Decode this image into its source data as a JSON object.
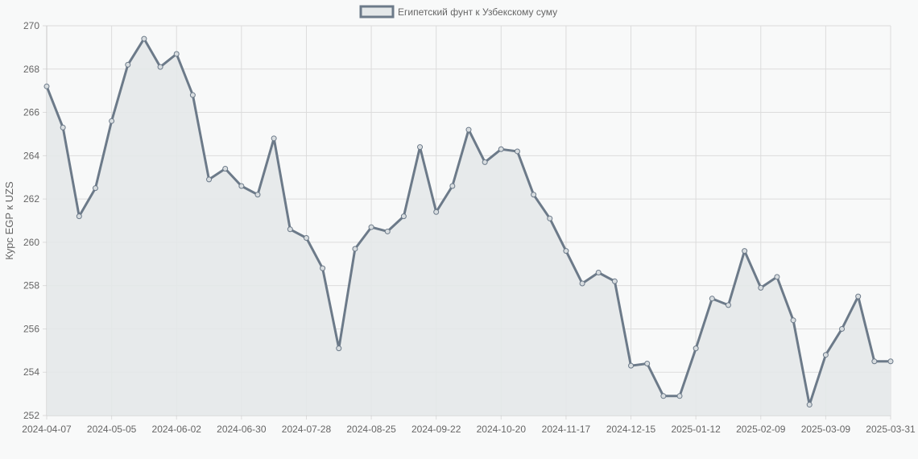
{
  "chart_data": {
    "type": "area",
    "title": "",
    "legend": {
      "position": "top",
      "entries": [
        "Египетский фунт к Узбекскому суму"
      ]
    },
    "xlabel": "",
    "ylabel": "Курс EGP к UZS",
    "ylim": [
      252,
      270
    ],
    "yticks": [
      252,
      254,
      256,
      258,
      260,
      262,
      264,
      266,
      268,
      270
    ],
    "xtick_labels": [
      "2024-04-07",
      "2024-05-05",
      "2024-06-02",
      "2024-06-30",
      "2024-07-28",
      "2024-08-25",
      "2024-09-22",
      "2024-10-20",
      "2024-11-17",
      "2024-12-15",
      "2025-01-12",
      "2025-02-09",
      "2025-03-09",
      "2025-03-31"
    ],
    "grid": true,
    "colors": {
      "line": "#6c7a89",
      "fill": "#e4e8e9",
      "grid": "#dcdcdc",
      "background": "#f8f9f9"
    },
    "series": [
      {
        "name": "Египетский фунт к Узбекскому суму",
        "values": [
          267.2,
          265.3,
          261.2,
          262.5,
          265.6,
          268.2,
          269.4,
          268.1,
          268.7,
          266.8,
          262.9,
          263.4,
          262.6,
          262.2,
          264.8,
          260.6,
          260.2,
          258.8,
          255.1,
          259.7,
          260.7,
          260.5,
          261.2,
          264.4,
          261.4,
          262.6,
          265.2,
          263.7,
          264.3,
          264.2,
          262.2,
          261.1,
          259.6,
          258.1,
          258.6,
          258.2,
          254.3,
          254.4,
          252.9,
          252.9,
          255.1,
          257.4,
          257.1,
          259.6,
          257.9,
          258.4,
          256.4,
          252.5,
          254.8,
          256.0,
          257.5,
          254.5,
          254.5
        ]
      }
    ]
  }
}
